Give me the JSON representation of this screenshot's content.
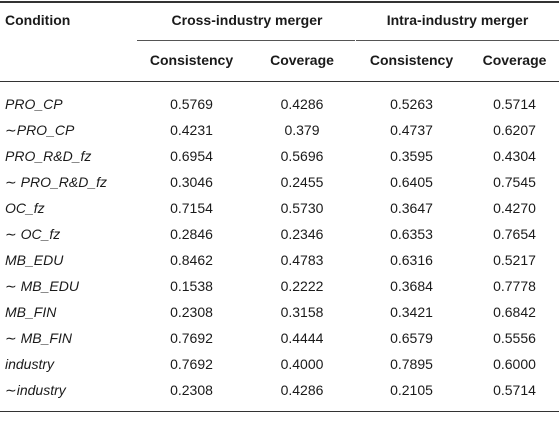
{
  "header": {
    "condition": "Condition",
    "group_cross": "Cross-industry merger",
    "group_intra": "Intra-industry merger",
    "consistency": "Consistency",
    "coverage": "Coverage"
  },
  "rows": [
    {
      "condition": "PRO_CP",
      "cross_consistency": "0.5769",
      "cross_coverage": "0.4286",
      "intra_consistency": "0.5263",
      "intra_coverage": "0.5714"
    },
    {
      "condition": "∼PRO_CP",
      "cross_consistency": "0.4231",
      "cross_coverage": "0.379",
      "intra_consistency": "0.4737",
      "intra_coverage": "0.6207"
    },
    {
      "condition": "PRO_R&D_fz",
      "cross_consistency": "0.6954",
      "cross_coverage": "0.5696",
      "intra_consistency": "0.3595",
      "intra_coverage": "0.4304"
    },
    {
      "condition": "∼ PRO_R&D_fz",
      "cross_consistency": "0.3046",
      "cross_coverage": "0.2455",
      "intra_consistency": "0.6405",
      "intra_coverage": "0.7545"
    },
    {
      "condition": "OC_fz",
      "cross_consistency": "0.7154",
      "cross_coverage": "0.5730",
      "intra_consistency": "0.3647",
      "intra_coverage": "0.4270"
    },
    {
      "condition": "∼ OC_fz",
      "cross_consistency": "0.2846",
      "cross_coverage": "0.2346",
      "intra_consistency": "0.6353",
      "intra_coverage": "0.7654"
    },
    {
      "condition": "MB_EDU",
      "cross_consistency": "0.8462",
      "cross_coverage": "0.4783",
      "intra_consistency": "0.6316",
      "intra_coverage": "0.5217"
    },
    {
      "condition": "∼ MB_EDU",
      "cross_consistency": "0.1538",
      "cross_coverage": "0.2222",
      "intra_consistency": "0.3684",
      "intra_coverage": "0.7778"
    },
    {
      "condition": "MB_FIN",
      "cross_consistency": "0.2308",
      "cross_coverage": "0.3158",
      "intra_consistency": "0.3421",
      "intra_coverage": "0.6842"
    },
    {
      "condition": "∼ MB_FIN",
      "cross_consistency": "0.7692",
      "cross_coverage": "0.4444",
      "intra_consistency": "0.6579",
      "intra_coverage": "0.5556"
    },
    {
      "condition": "industry",
      "cross_consistency": "0.7692",
      "cross_coverage": "0.4000",
      "intra_consistency": "0.7895",
      "intra_coverage": "0.6000"
    },
    {
      "condition": "∼industry",
      "cross_consistency": "0.2308",
      "cross_coverage": "0.4286",
      "intra_consistency": "0.2105",
      "intra_coverage": "0.5714"
    }
  ]
}
